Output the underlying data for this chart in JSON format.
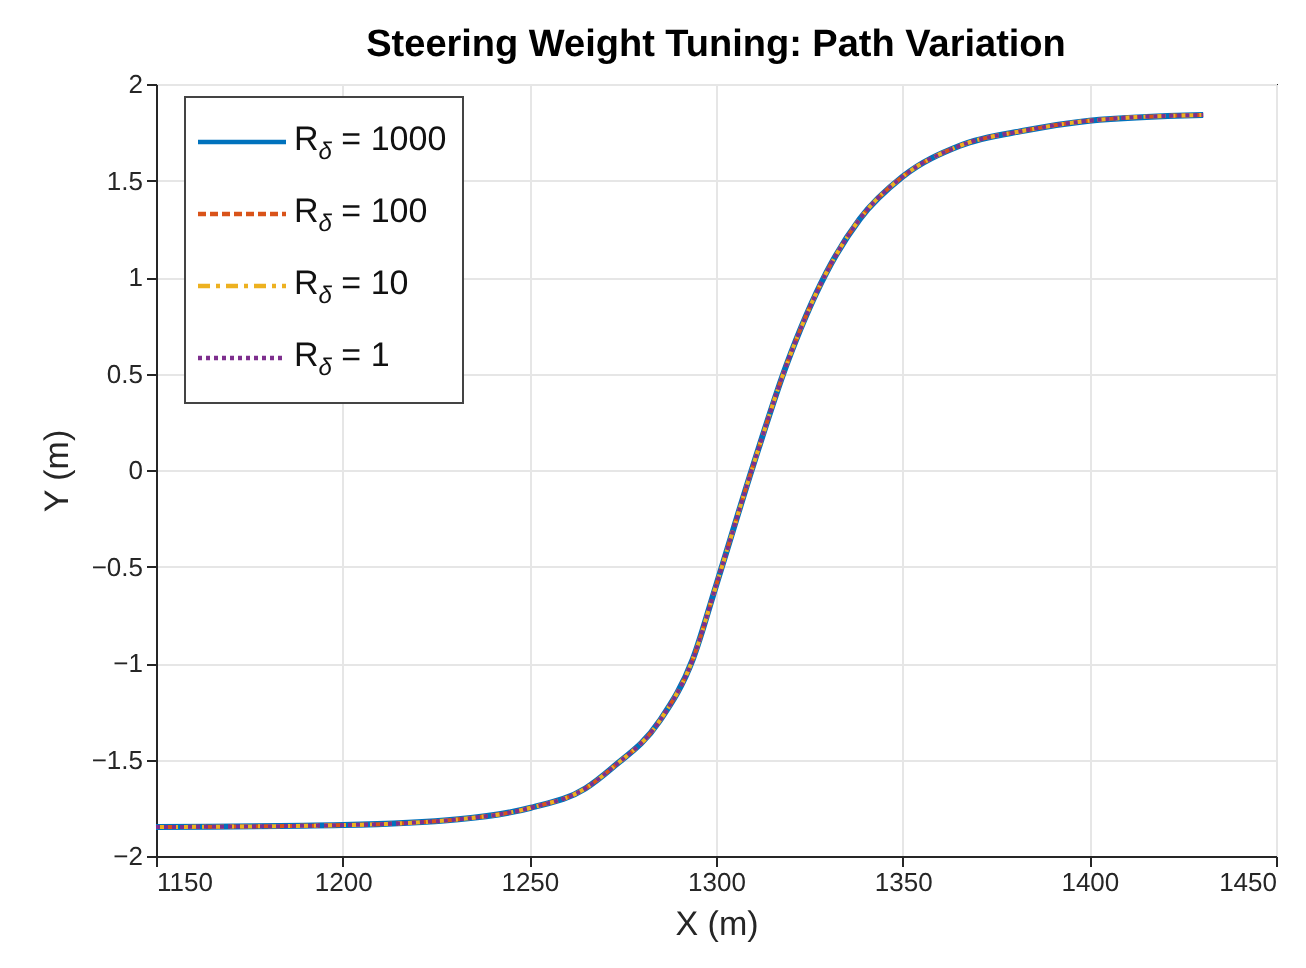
{
  "chart_data": {
    "type": "line",
    "title": "Steering Weight Tuning: Path Variation",
    "xlabel": "X (m)",
    "ylabel": "Y (m)",
    "x": [
      1150,
      1200,
      1231,
      1250.4,
      1265,
      1272.4,
      1284.9,
      1293.8,
      1300,
      1309.9,
      1318.8,
      1329.5,
      1338.5,
      1350,
      1365.3,
      1383.1,
      1400,
      1430.5
    ],
    "series": [
      {
        "name": "R$_{δ}$ = 1000",
        "color": "#0072bd",
        "line_style": "solid",
        "values": [
          -1.85,
          -1.84,
          -1.81,
          -1.75,
          -1.65,
          -1.54,
          -1.3,
          -0.98,
          -0.6,
          0.02,
          0.54,
          1.02,
          1.3,
          1.52,
          1.68,
          1.76,
          1.81,
          1.84
        ]
      },
      {
        "name": "R$_{δ}$ = 100",
        "color": "#d95319",
        "line_style": "dashed",
        "values": [
          -1.85,
          -1.84,
          -1.81,
          -1.75,
          -1.65,
          -1.54,
          -1.3,
          -0.98,
          -0.6,
          0.02,
          0.54,
          1.02,
          1.3,
          1.52,
          1.68,
          1.76,
          1.81,
          1.84
        ]
      },
      {
        "name": "R$_{δ}$ = 10",
        "color": "#edb120",
        "line_style": "dashdot",
        "values": [
          -1.85,
          -1.84,
          -1.81,
          -1.75,
          -1.65,
          -1.54,
          -1.3,
          -0.98,
          -0.6,
          0.02,
          0.54,
          1.02,
          1.3,
          1.52,
          1.68,
          1.76,
          1.81,
          1.84
        ]
      },
      {
        "name": "R$_{δ}$ = 1",
        "color": "#7e2f8e",
        "line_style": "dotted",
        "values": [
          -1.85,
          -1.84,
          -1.81,
          -1.75,
          -1.65,
          -1.54,
          -1.3,
          -0.98,
          -0.6,
          0.02,
          0.54,
          1.02,
          1.3,
          1.52,
          1.68,
          1.76,
          1.81,
          1.84
        ]
      }
    ],
    "xlim": [
      1150,
      1450
    ],
    "xticks": [
      1150,
      1200,
      1250,
      1300,
      1350,
      1400,
      1450
    ],
    "ylim": [
      -2,
      2
    ],
    "yticks": [
      -2,
      -1.5,
      -1,
      -0.5,
      0,
      0.5,
      1,
      1.5,
      2
    ],
    "grid": true,
    "legend": "top left"
  }
}
